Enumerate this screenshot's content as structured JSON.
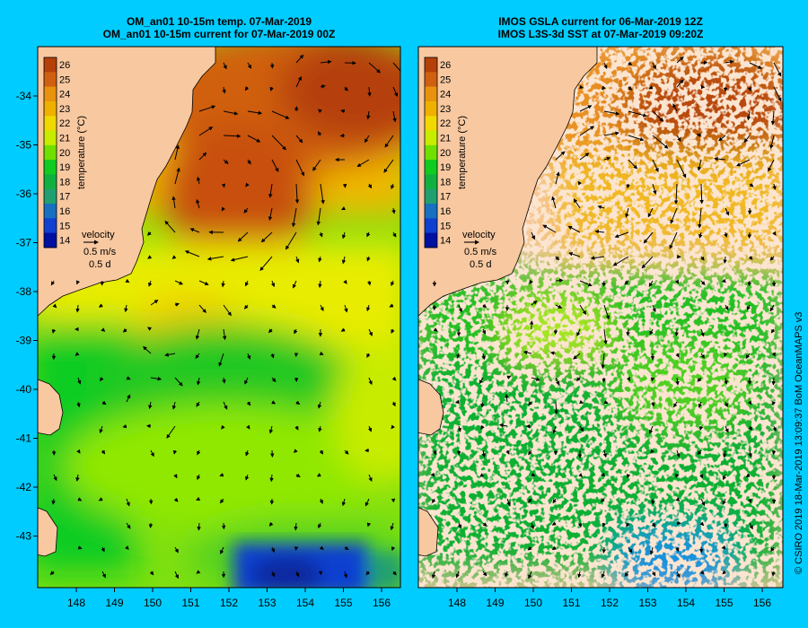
{
  "titles": {
    "left_line1": "OM_an01 10-15m temp. 07-Mar-2019",
    "left_line2": "OM_an01 10-15m current for 07-Mar-2019 00Z",
    "right_line1": "IMOS GSLA current for 06-Mar-2019 12Z",
    "right_line2": "IMOS L3S-3d SST at 07-Mar-2019 09:20Z"
  },
  "axes": {
    "lat_ticks": [
      "-34",
      "-35",
      "-36",
      "-37",
      "-38",
      "-39",
      "-40",
      "-41",
      "-42",
      "-43"
    ],
    "lon_ticks": [
      "148",
      "149",
      "150",
      "151",
      "152",
      "153",
      "154",
      "155",
      "156"
    ]
  },
  "colorbar": {
    "label": "temperature (°C)",
    "values": [
      "26",
      "25",
      "24",
      "23",
      "22",
      "21",
      "20",
      "19",
      "18",
      "17",
      "16",
      "15",
      "14"
    ],
    "colors": [
      "#b5400a",
      "#d06010",
      "#e8920e",
      "#f0b000",
      "#f0d800",
      "#c8ec00",
      "#70e000",
      "#10cc20",
      "#10b040",
      "#20a070",
      "#1870c0",
      "#1040d0",
      "#0010a0"
    ]
  },
  "velocity_key": {
    "label": "velocity",
    "speed": "0.5 m/s",
    "time": "0.5 d"
  },
  "colors": {
    "frame_bg": "#00ccff",
    "land": "#f8c8a0",
    "arrow": "#000000"
  },
  "credit": "© CSIRO 2019   18-Mar-2019 13:09:37 BoM OceanMAPS v3"
}
